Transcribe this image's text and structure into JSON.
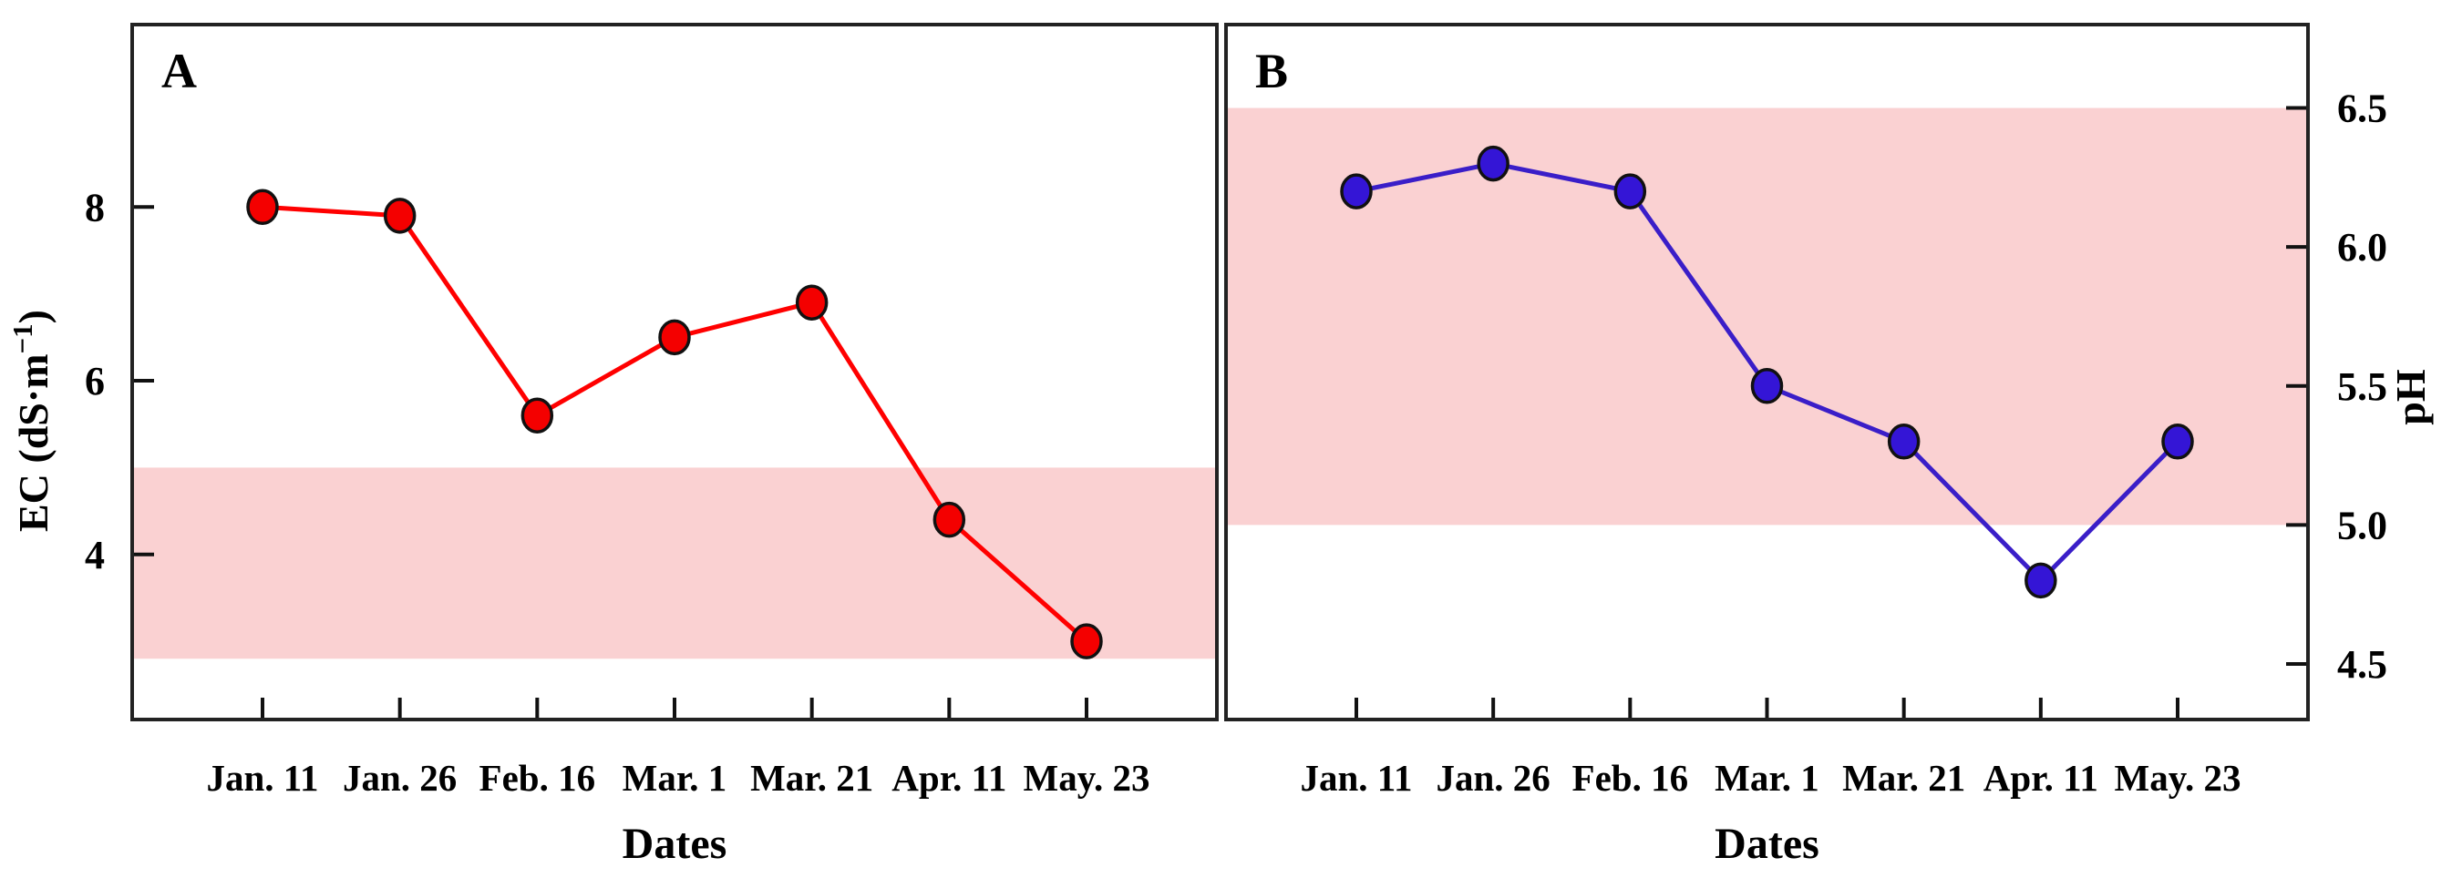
{
  "figure": {
    "xlabel": "Dates",
    "categories": [
      "Jan. 11",
      "Jan. 26",
      "Feb. 16",
      "Mar. 1",
      "Mar. 21",
      "Apr. 11",
      "May. 23"
    ],
    "band_color": "#FAD1D2"
  },
  "chart_data": [
    {
      "type": "line",
      "panel_label": "A",
      "categories": [
        "Jan. 11",
        "Jan. 26",
        "Feb. 16",
        "Mar. 1",
        "Mar. 21",
        "Apr. 11",
        "May. 23"
      ],
      "series": [
        {
          "name": "EC",
          "values": [
            8.0,
            7.9,
            5.6,
            6.5,
            6.9,
            4.4,
            3.0
          ]
        }
      ],
      "xlabel": "Dates",
      "ylabel": "EC (dS·m⁻¹)",
      "ylabel_rich": {
        "main": "EC (dS·m",
        "sup": "−1",
        "end": ")"
      },
      "yticks": [
        4,
        6,
        8
      ],
      "ytick_labels": [
        "4",
        "6",
        "8"
      ],
      "ylim": [
        2.1,
        10.1
      ],
      "yaxis_side": "left",
      "reference_band": {
        "from": 2.8,
        "to": 5.0,
        "color": "#FAD1D2"
      },
      "line_color": "#FF0000",
      "marker_fill": "#F40000",
      "marker_edge": "#111111",
      "grid": false,
      "legend": "none"
    },
    {
      "type": "line",
      "panel_label": "B",
      "categories": [
        "Jan. 11",
        "Jan. 26",
        "Feb. 16",
        "Mar. 1",
        "Mar. 21",
        "Apr. 11",
        "May. 23"
      ],
      "series": [
        {
          "name": "pH",
          "values": [
            6.2,
            6.3,
            6.2,
            5.5,
            5.3,
            4.8,
            5.3
          ]
        }
      ],
      "xlabel": "Dates",
      "ylabel": "pH",
      "ylabel_rich": null,
      "yticks": [
        4.5,
        5.0,
        5.5,
        6.0,
        6.5
      ],
      "ytick_labels": [
        "4.5",
        "5.0",
        "5.5",
        "6.0",
        "6.5"
      ],
      "ylim": [
        4.3,
        6.8
      ],
      "yaxis_side": "right",
      "reference_band": {
        "from": 5.0,
        "to": 6.5,
        "color": "#FAD1D2"
      },
      "line_color": "#3A1EC8",
      "marker_fill": "#3415D6",
      "marker_edge": "#111111",
      "grid": false,
      "legend": "none"
    }
  ]
}
